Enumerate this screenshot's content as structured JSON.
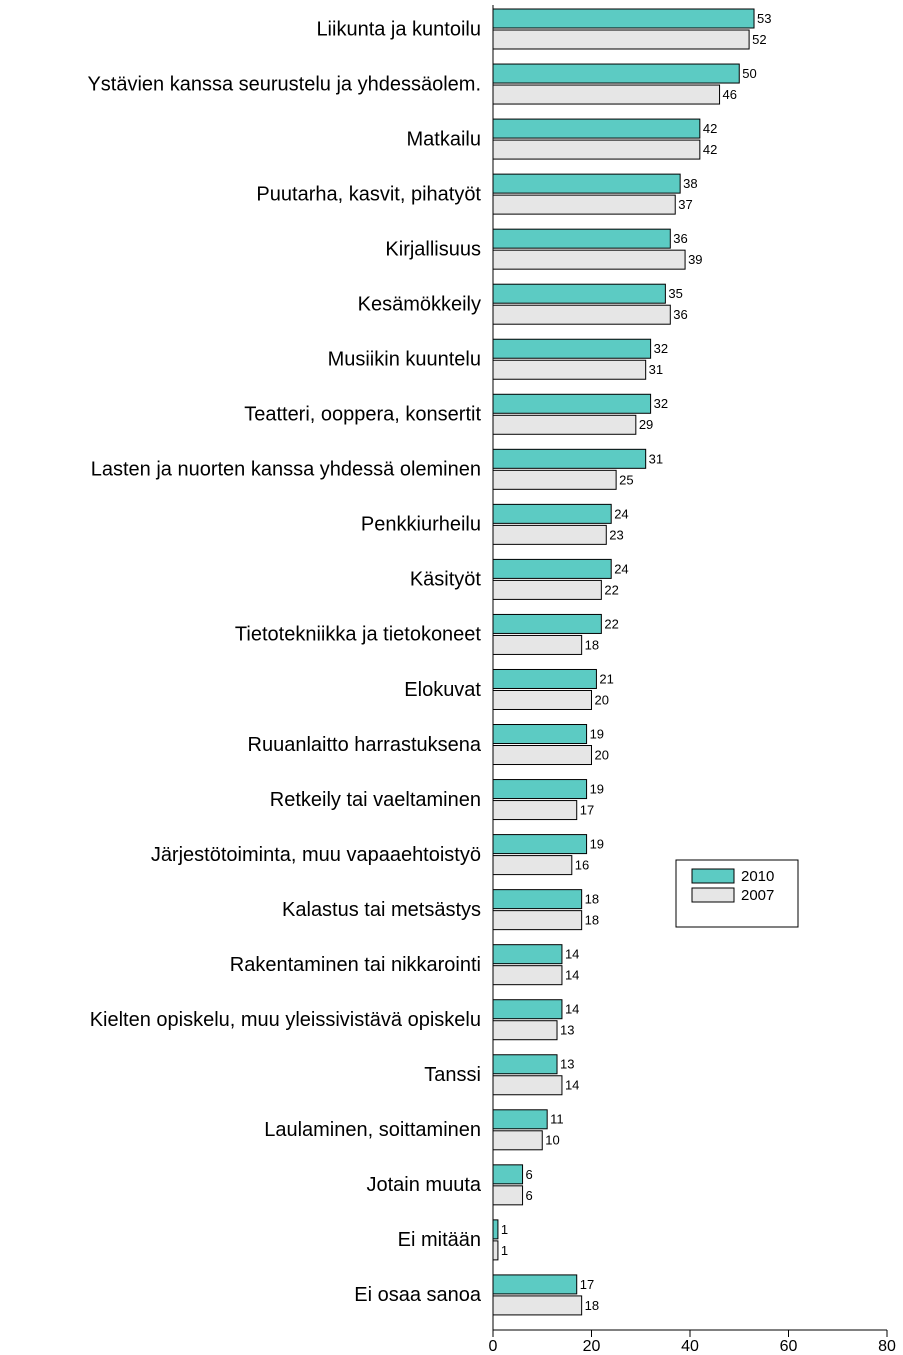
{
  "chart_data": {
    "type": "bar",
    "orientation": "horizontal",
    "categories": [
      "Liikunta ja kuntoilu",
      "Ystävien kanssa seurustelu ja yhdessäolem.",
      "Matkailu",
      "Puutarha, kasvit, pihatyöt",
      "Kirjallisuus",
      "Kesämökkeily",
      "Musiikin kuuntelu",
      "Teatteri, ooppera, konsertit",
      "Lasten ja nuorten kanssa yhdessä oleminen",
      "Penkkiurheilu",
      "Käsityöt",
      "Tietotekniikka ja tietokoneet",
      "Elokuvat",
      "Ruuanlaitto harrastuksena",
      "Retkeily tai vaeltaminen",
      "Järjestötoiminta, muu vapaaehtoistyö",
      "Kalastus tai metsästys",
      "Rakentaminen tai nikkarointi",
      "Kielten opiskelu, muu yleissivistävä opiskelu",
      "Tanssi",
      "Laulaminen, soittaminen",
      "Jotain muuta",
      "Ei mitään",
      "Ei osaa sanoa"
    ],
    "series": [
      {
        "name": "2010",
        "color": "#5ccbc3",
        "values": [
          53,
          50,
          42,
          38,
          36,
          35,
          32,
          32,
          31,
          24,
          24,
          22,
          21,
          19,
          19,
          19,
          18,
          14,
          14,
          13,
          11,
          6,
          1,
          17
        ]
      },
      {
        "name": "2007",
        "color": "#e6e6e6",
        "values": [
          52,
          46,
          42,
          37,
          39,
          36,
          31,
          29,
          25,
          23,
          22,
          18,
          20,
          20,
          17,
          16,
          18,
          14,
          13,
          14,
          10,
          6,
          1,
          18
        ]
      }
    ],
    "xlim": [
      0,
      80
    ],
    "xticks": [
      0,
      20,
      40,
      60,
      80
    ],
    "legend": "right"
  }
}
